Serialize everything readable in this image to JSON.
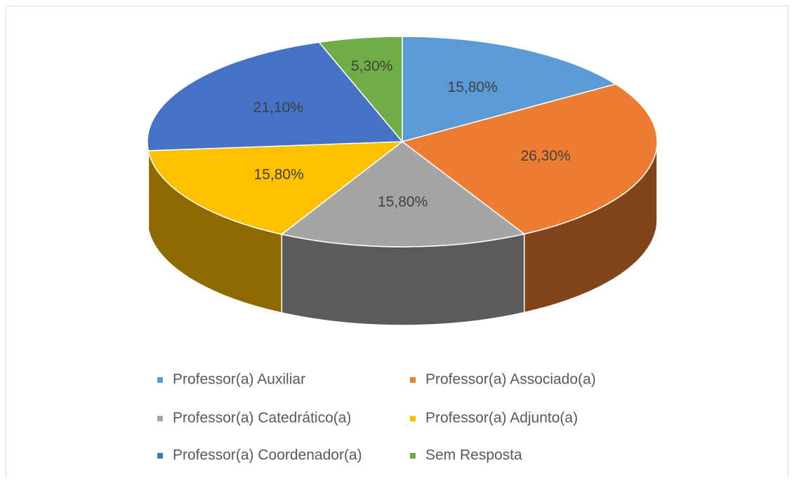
{
  "chart_data": {
    "type": "pie",
    "categories": [
      "Professor(a) Auxiliar",
      "Professor(a) Associado(a)",
      "Professor(a) Catedrático(a)",
      "Professor(a) Adjunto(a)",
      "Professor(a) Coordenador(a)",
      "Sem Resposta"
    ],
    "values": [
      15.8,
      26.3,
      15.8,
      15.8,
      21.1,
      5.3
    ],
    "value_labels": [
      "15,80%",
      "26,30%",
      "15,80%",
      "15,80%",
      "21,10%",
      "5,30%"
    ],
    "colors": [
      "#5b9bd5",
      "#ed7d31",
      "#a5a5a5",
      "#ffc000",
      "#4472c4",
      "#70ad47"
    ],
    "legend": "bottom"
  }
}
